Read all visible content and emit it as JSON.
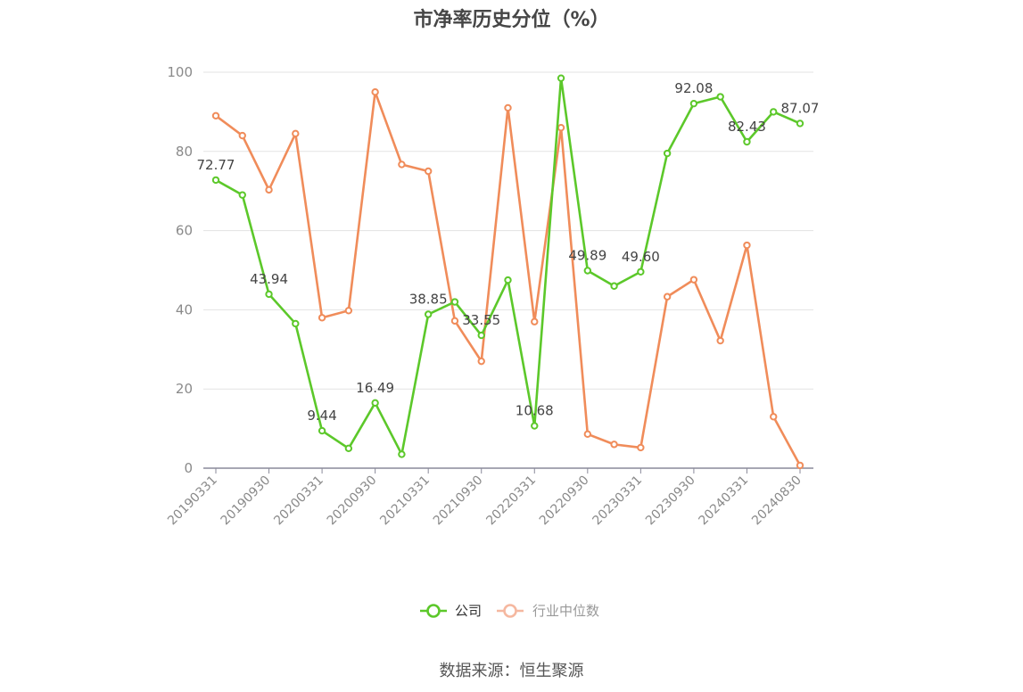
{
  "chart_data": {
    "type": "line",
    "title": "市净率历史分位（%）",
    "source": "数据来源：恒生聚源",
    "ylim": [
      0,
      100
    ],
    "yticks": [
      0,
      20,
      40,
      60,
      80,
      100
    ],
    "grid": true,
    "legend_position": "bottom",
    "x": [
      "20190331",
      "20190630",
      "20190930",
      "20191231",
      "20200331",
      "20200630",
      "20200930",
      "20201231",
      "20210331",
      "20210630",
      "20210930",
      "20211231",
      "20220331",
      "20220630",
      "20220930",
      "20221231",
      "20230331",
      "20230630",
      "20230930",
      "20231231",
      "20240331",
      "20240630",
      "20240830"
    ],
    "xtick_labels": [
      "20190331",
      "20190930",
      "20200331",
      "20200930",
      "20210331",
      "20210930",
      "20220331",
      "20220930",
      "20230331",
      "20230930",
      "20240331",
      "20240830"
    ],
    "series": [
      {
        "name": "公司",
        "color": "#5cc82a",
        "values": [
          72.77,
          69.0,
          43.94,
          36.5,
          9.44,
          5.0,
          16.49,
          3.5,
          38.85,
          42.0,
          33.55,
          47.5,
          10.68,
          98.5,
          49.89,
          46.0,
          49.6,
          79.5,
          92.08,
          93.8,
          82.43,
          90.0,
          87.07
        ],
        "labels": [
          "72.77",
          "",
          "43.94",
          "",
          "9.44",
          "",
          "16.49",
          "",
          "38.85",
          "",
          "33.55",
          "",
          "10.68",
          "",
          "49.89",
          "",
          "49.60",
          "",
          "92.08",
          "",
          "82.43",
          "",
          "87.07"
        ]
      },
      {
        "name": "行业中位数",
        "color": "#f08c5a",
        "values": [
          89.0,
          84.0,
          70.3,
          84.5,
          38.0,
          39.8,
          95.0,
          76.7,
          75.0,
          37.2,
          27.0,
          91.0,
          37.0,
          86.0,
          8.6,
          6.0,
          5.2,
          43.3,
          47.6,
          32.2,
          56.3,
          13.0,
          0.7
        ]
      }
    ],
    "legend_item_colors": [
      "#5cc82a",
      "#f5b8a0"
    ],
    "legend_text_colors": [
      "#333333",
      "#999999"
    ]
  }
}
